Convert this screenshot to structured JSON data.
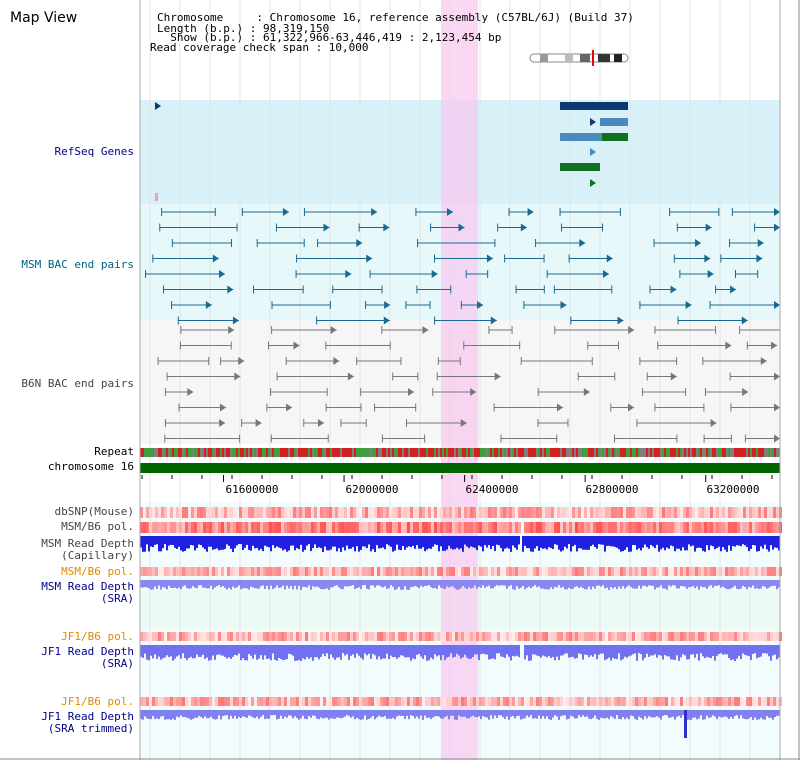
{
  "page_title": "Map View",
  "header": {
    "chromosome_line": "Chromosome     : Chromosome 16, reference assembly (C57BL/6J) (Build 37)",
    "length_line": "Length (b.p.) : 98,319,150",
    "show_line": "  Show (b.p.) : 61,322,966-63,446,419 : 2,123,454 bp",
    "coverage_line": "Read coverage check span : 10,000"
  },
  "tracks": {
    "refseq": "RefSeq Genes",
    "msm_bac": "MSM BAC end pairs",
    "b6n_bac": "B6N BAC end pairs",
    "repeat": "Repeat",
    "chromosome": "chromosome 16",
    "dbsnp": "dbSNP(Mouse)",
    "msm_b6_pol": "MSM/B6 pol.",
    "msm_depth_cap_1": "MSM Read Depth",
    "msm_depth_cap_2": "(Capillary)",
    "msm_b6_pol2": "MSM/B6 pol.",
    "msm_depth_sra_1": "MSM Read Depth",
    "msm_depth_sra_2": "(SRA)",
    "jf1_pol": "JF1/B6 pol.",
    "jf1_depth_1": "JF1 Read Depth",
    "jf1_depth_2": "(SRA)",
    "jf1_pol2": "JF1/B6 pol.",
    "jf1_trim_1": "JF1 Read Depth",
    "jf1_trim_2": "(SRA trimmed)"
  },
  "axis": {
    "ticks": [
      "61600000",
      "62000000",
      "62400000",
      "62800000",
      "63200000"
    ],
    "tick_values": [
      61600000,
      62000000,
      62400000,
      62800000,
      63200000
    ],
    "view_start": 61322966,
    "view_end": 63446419
  },
  "colors": {
    "label_blue": "#00008b",
    "label_teal": "#006080",
    "label_gray": "#444444",
    "label_orange": "#e08a00",
    "refseq_bg": "#d8f0f8",
    "msm_bg": "#e8f8fb",
    "highlight": "#f8d8f0",
    "chromosome": "#006400"
  }
}
